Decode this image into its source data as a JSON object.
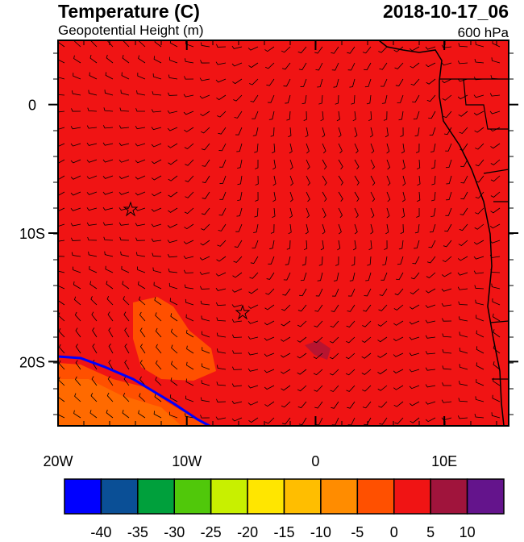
{
  "header": {
    "title": "Temperature (C)",
    "subtitle": "Geopotential Height (m)",
    "time": "2018-10-17_06",
    "level": "600 hPa"
  },
  "map": {
    "xlim": [
      -20,
      15
    ],
    "ylim": [
      -25,
      5
    ],
    "xticks": [
      {
        "value": -20,
        "label": "20W"
      },
      {
        "value": -10,
        "label": "10W"
      },
      0,
      {
        "value": 10,
        "label": "10E"
      }
    ],
    "yticks": [
      0,
      {
        "value": -10,
        "label": "10S"
      },
      {
        "value": -20,
        "label": "20S"
      }
    ]
  },
  "colorbar": {
    "colors": [
      "#0000ff",
      "#0a4f96",
      "#00a03c",
      "#50c80a",
      "#c8f000",
      "#ffe600",
      "#ffbe00",
      "#ff8c00",
      "#ff5000",
      "#f01414",
      "#a0143c",
      "#64148c"
    ],
    "levels": [
      -40,
      -35,
      -30,
      -25,
      -20,
      -15,
      -10,
      -5,
      0,
      5,
      10
    ]
  }
}
